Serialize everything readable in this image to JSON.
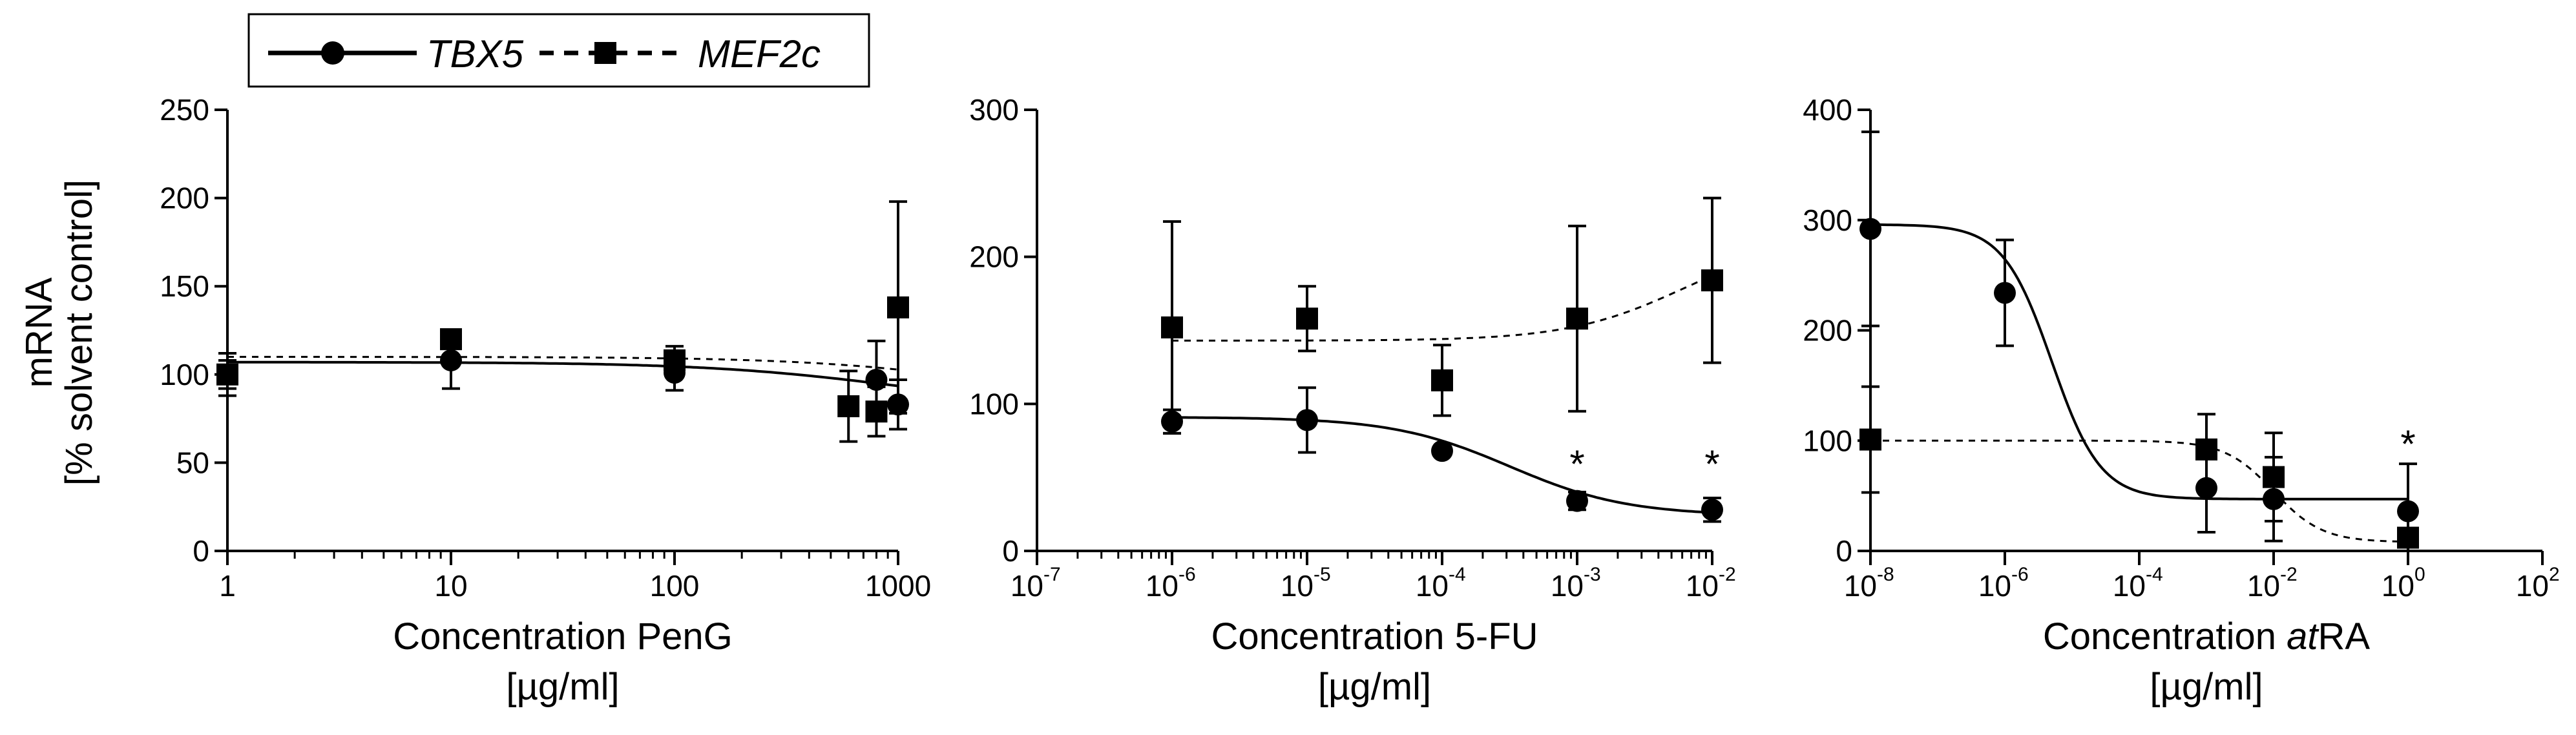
{
  "legend": {
    "series": [
      {
        "name": "TBX5",
        "marker": "circle",
        "line": "solid"
      },
      {
        "name": "MEF2c",
        "marker": "square",
        "line": "dashed"
      }
    ]
  },
  "y_axis_shared": {
    "label_line1": "mRNA",
    "label_line2": "[% solvent control]"
  },
  "chart_data": [
    {
      "type": "scatter",
      "panel": "PenG",
      "xscale": "log",
      "xlim": [
        1,
        1000
      ],
      "ylim": [
        0,
        250
      ],
      "xticks": [
        {
          "v": 1,
          "label": "1"
        },
        {
          "v": 10,
          "label": "10"
        },
        {
          "v": 100,
          "label": "100"
        },
        {
          "v": 1000,
          "label": "1000"
        }
      ],
      "yticks": [
        0,
        50,
        100,
        150,
        200,
        250
      ],
      "xlabel_prefix": "Concentration PenG",
      "xlabel_italic": "",
      "xlabel_suffix": "",
      "xunit": "[µg/ml]",
      "series": [
        {
          "name": "TBX5",
          "x": [
            1,
            10,
            100,
            800,
            1000
          ],
          "y": [
            100,
            108,
            101,
            97,
            83
          ],
          "err": [
            12,
            16,
            10,
            22,
            14
          ],
          "fit": {
            "top": 107,
            "bottom": 80,
            "logec50": 3.0,
            "hill": 1
          }
        },
        {
          "name": "MEF2c",
          "x": [
            1,
            10,
            100,
            600,
            800,
            1000
          ],
          "y": [
            100,
            120,
            108,
            82,
            79,
            138
          ],
          "err": [
            8,
            5,
            8,
            20,
            14,
            60
          ],
          "fit": {
            "top": 110,
            "bottom": 80,
            "logec50": 3.5,
            "hill": 1
          }
        }
      ],
      "annotations": []
    },
    {
      "type": "scatter",
      "panel": "5-FU",
      "xscale": "log",
      "xlim": [
        1e-07,
        0.01
      ],
      "ylim": [
        0,
        300
      ],
      "xticks": [
        {
          "v": 1e-07,
          "label": "10",
          "sup": "-7"
        },
        {
          "v": 1e-06,
          "label": "10",
          "sup": "-6"
        },
        {
          "v": 1e-05,
          "label": "10",
          "sup": "-5"
        },
        {
          "v": 0.0001,
          "label": "10",
          "sup": "-4"
        },
        {
          "v": 0.001,
          "label": "10",
          "sup": "-3"
        },
        {
          "v": 0.01,
          "label": "10",
          "sup": "-2"
        }
      ],
      "yticks": [
        0,
        100,
        200,
        300
      ],
      "xlabel_prefix": "Concentration 5-FU",
      "xlabel_italic": "",
      "xlabel_suffix": "",
      "xunit": "[µg/ml]",
      "series": [
        {
          "name": "TBX5",
          "x": [
            1e-06,
            1e-05,
            0.0001,
            0.001,
            0.01
          ],
          "y": [
            88,
            89,
            68,
            34,
            28
          ],
          "err": [
            8,
            22,
            3,
            6,
            8
          ],
          "fit": {
            "top": 91,
            "bottom": 24,
            "logec50": -3.5,
            "hill": 1
          }
        },
        {
          "name": "MEF2c",
          "x": [
            1e-06,
            1e-05,
            0.0001,
            0.001,
            0.01
          ],
          "y": [
            152,
            158,
            116,
            158,
            184
          ],
          "err": [
            72,
            22,
            24,
            63,
            56
          ],
          "fit": {
            "top": 143,
            "bottom": 215,
            "logec50": -2.2,
            "hill": 1
          }
        }
      ],
      "annotations": [
        {
          "x": 0.001,
          "y": 50,
          "text": "*"
        },
        {
          "x": 0.01,
          "y": 50,
          "text": "*"
        }
      ]
    },
    {
      "type": "scatter",
      "panel": "atRA",
      "xscale": "log",
      "xlim": [
        1e-08,
        100.0
      ],
      "ylim": [
        0,
        400
      ],
      "xticks": [
        {
          "v": 1e-08,
          "label": "10",
          "sup": "-8"
        },
        {
          "v": 1e-06,
          "label": "10",
          "sup": "-6"
        },
        {
          "v": 0.0001,
          "label": "10",
          "sup": "-4"
        },
        {
          "v": 0.01,
          "label": "10",
          "sup": "-2"
        },
        {
          "v": 1.0,
          "label": "10",
          "sup": "0"
        },
        {
          "v": 100.0,
          "label": "10",
          "sup": "2"
        }
      ],
      "yticks": [
        0,
        100,
        200,
        300,
        400
      ],
      "xlabel_prefix": "Concentration ",
      "xlabel_italic": "at",
      "xlabel_suffix": "RA",
      "xunit": "[µg/ml]",
      "series": [
        {
          "name": "TBX5",
          "x": [
            1e-08,
            1e-06,
            0.001,
            0.01,
            1
          ],
          "y": [
            292,
            234,
            57,
            47,
            36
          ],
          "err": [
            88,
            48,
            40,
            38,
            43
          ],
          "fit": {
            "top": 296,
            "bottom": 47,
            "logec50": -5.3,
            "hill": 1.2
          }
        },
        {
          "name": "MEF2c",
          "x": [
            1e-08,
            0.001,
            0.01,
            1
          ],
          "y": [
            101,
            92,
            67,
            12
          ],
          "err": [
            48,
            32,
            40,
            5
          ],
          "fit": {
            "top": 100,
            "bottom": 8,
            "logec50": -2.0,
            "hill": 1.2
          }
        }
      ],
      "annotations": [
        {
          "x": 1,
          "y": 85,
          "text": "*"
        }
      ]
    }
  ]
}
